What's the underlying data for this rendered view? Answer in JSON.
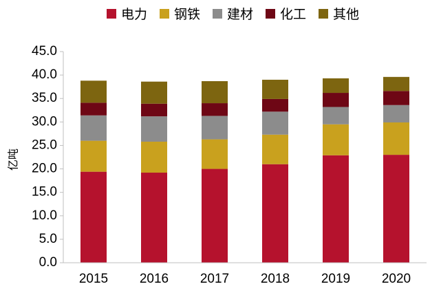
{
  "chart_data": {
    "type": "bar",
    "stacked": true,
    "title": "",
    "xlabel": "",
    "ylabel": "亿吨",
    "categories": [
      "2015",
      "2016",
      "2017",
      "2018",
      "2019",
      "2020"
    ],
    "ylim": [
      0,
      45
    ],
    "yticks": [
      "0.0",
      "5.0",
      "10.0",
      "15.0",
      "20.0",
      "25.0",
      "30.0",
      "35.0",
      "40.0",
      "45.0"
    ],
    "grid": false,
    "legend_position": "top",
    "series": [
      {
        "name": "电力",
        "color": "#b5122d",
        "values": [
          19.4,
          19.2,
          20.0,
          21.0,
          22.9,
          23.0
        ]
      },
      {
        "name": "钢铁",
        "color": "#c9a11e",
        "values": [
          6.6,
          6.6,
          6.3,
          6.3,
          6.6,
          6.9
        ]
      },
      {
        "name": "建材",
        "color": "#8c8c8c",
        "values": [
          5.4,
          5.4,
          5.0,
          4.9,
          3.7,
          3.7
        ]
      },
      {
        "name": "化工",
        "color": "#6e0715",
        "values": [
          2.7,
          2.7,
          2.7,
          2.7,
          3.0,
          3.0
        ]
      },
      {
        "name": "其他",
        "color": "#7d6510",
        "values": [
          4.7,
          4.7,
          4.7,
          4.1,
          3.1,
          3.0
        ]
      }
    ]
  }
}
